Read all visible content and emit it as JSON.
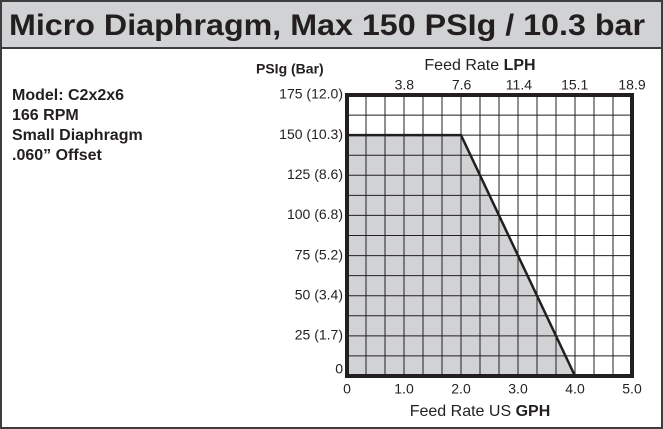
{
  "chart_data": {
    "type": "area",
    "title": "Micro Diaphragm, Max 150 PSIg / 10.3 bar",
    "notes": [
      "Model: C2x2x6",
      "166 RPM",
      "Small Diaphragm",
      ".060” Offset"
    ],
    "y_label": "PSIg (Bar)",
    "x_label": "Feed Rate US",
    "x_label_unit": "GPH",
    "x2_label": "Feed Rate",
    "x2_label_unit": "LPH",
    "x": [
      0,
      2,
      4
    ],
    "series": [
      {
        "color": "#d1d2d4",
        "line_color": "#231f20",
        "values": [
          150,
          150,
          0
        ]
      }
    ],
    "xlim": [
      0,
      5
    ],
    "xticks": [
      0,
      {
        "value": 1,
        "label": "1.0"
      },
      {
        "value": 2,
        "label": "2.0"
      },
      {
        "value": 3,
        "label": "3.0"
      },
      {
        "value": 4,
        "label": "4.0"
      },
      {
        "value": 5,
        "label": "5.0"
      }
    ],
    "x2lim": [
      0,
      18.9
    ],
    "x2ticks": [
      3.8,
      7.6,
      11.4,
      15.1,
      18.9
    ],
    "ylim": [
      0,
      175
    ],
    "yticks": [
      0,
      {
        "value": 25,
        "label": "25 (1.7)"
      },
      {
        "value": 50,
        "label": "50 (3.4)"
      },
      {
        "value": 75,
        "label": "75 (5.2)"
      },
      {
        "value": 100,
        "label": "100 (6.8)"
      },
      {
        "value": 125,
        "label": "125 (8.6)"
      },
      {
        "value": 150,
        "label": "150 (10.3)"
      },
      {
        "value": 175,
        "label": "175 (12.0)"
      }
    ],
    "grid": true
  }
}
